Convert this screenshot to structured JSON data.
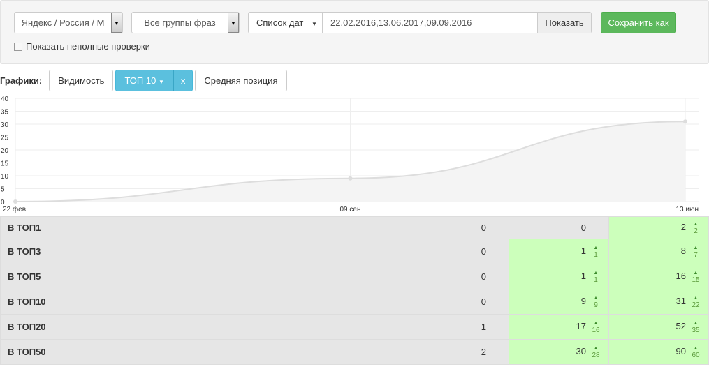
{
  "filters": {
    "engine": "Яндекс / Россия / М",
    "groups": "Все группы фраз",
    "date_mode": "Список дат",
    "dates": "22.02.2016,13.06.2017,09.09.2016",
    "show_btn": "Показать",
    "save_btn": "Сохранить как",
    "incomplete": "Показать неполные проверки",
    "incomplete_checked": false
  },
  "charts": {
    "label": "Графики:",
    "visibility": "Видимость",
    "top": "ТОП 10",
    "close": "x",
    "avg": "Средняя позиция",
    "accent": "#5bc0de"
  },
  "chart_data": {
    "type": "area",
    "x": [
      "22 фев",
      "09 сен",
      "13 июн"
    ],
    "values": [
      0,
      9,
      31
    ],
    "ylim": [
      0,
      40
    ],
    "yticks": [
      0,
      5,
      10,
      15,
      20,
      25,
      30,
      35,
      40
    ],
    "grid": true
  },
  "table": {
    "rows": [
      {
        "name": "В ТОП1",
        "c": [
          {
            "v": "0"
          },
          {
            "v": "0"
          },
          {
            "v": "2",
            "d": "2"
          }
        ]
      },
      {
        "name": "В ТОП3",
        "c": [
          {
            "v": "0"
          },
          {
            "v": "1",
            "d": "1"
          },
          {
            "v": "8",
            "d": "7"
          }
        ]
      },
      {
        "name": "В ТОП5",
        "c": [
          {
            "v": "0"
          },
          {
            "v": "1",
            "d": "1"
          },
          {
            "v": "16",
            "d": "15"
          }
        ]
      },
      {
        "name": "В ТОП10",
        "c": [
          {
            "v": "0"
          },
          {
            "v": "9",
            "d": "9"
          },
          {
            "v": "31",
            "d": "22"
          }
        ]
      },
      {
        "name": "В ТОП20",
        "c": [
          {
            "v": "1"
          },
          {
            "v": "17",
            "d": "16"
          },
          {
            "v": "52",
            "d": "35"
          }
        ]
      },
      {
        "name": "В ТОП50",
        "c": [
          {
            "v": "2"
          },
          {
            "v": "30",
            "d": "28"
          },
          {
            "v": "90",
            "d": "60"
          }
        ]
      }
    ]
  }
}
